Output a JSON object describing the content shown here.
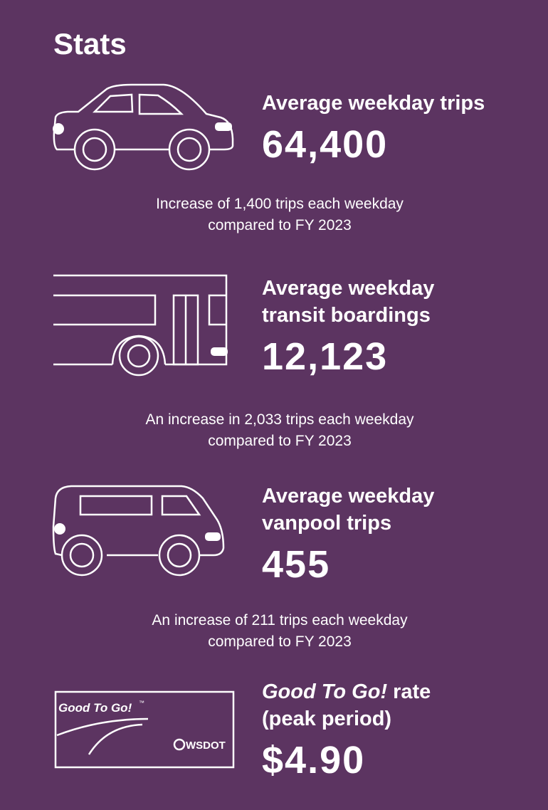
{
  "title": "Stats",
  "items": [
    {
      "heading": [
        "Average weekday trips"
      ],
      "value": "64,400",
      "note": [
        "Increase of 1,400 trips each weekday",
        "compared to FY 2023"
      ]
    },
    {
      "heading": [
        "Average weekday",
        "transit boardings"
      ],
      "value": "12,123",
      "note": [
        "An increase in 2,033 trips each weekday",
        "compared to FY 2023"
      ]
    },
    {
      "heading": [
        "Average weekday",
        "vanpool trips"
      ],
      "value": "455",
      "note": [
        "An increase of 211 trips each weekday",
        "compared to FY 2023"
      ]
    },
    {
      "heading_em": "Good To Go!",
      "heading": [
        "rate",
        "(peak period)"
      ],
      "value": "$4.90"
    }
  ],
  "card": {
    "brand": "Good To Go!",
    "tm": "™",
    "logo": "WSDOT"
  }
}
